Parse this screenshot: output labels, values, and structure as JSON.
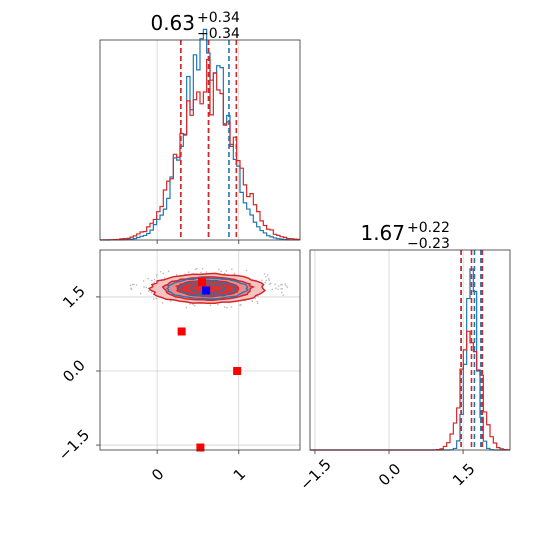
{
  "chart_data": {
    "type": "corner",
    "colors": {
      "series_a": "#1f77b4",
      "series_b": "#d62728",
      "marker_a": "#0000ff",
      "marker_b": "#ff0000",
      "grid": "#d3d3d3"
    },
    "panels": [
      {
        "id": "param1_marginal",
        "type": "histogram",
        "title": {
          "median": "0.63",
          "plus": "+0.34",
          "minus": "−0.34"
        },
        "xlim": [
          -0.7,
          1.75
        ],
        "xticks": [
          0,
          1
        ],
        "quantiles": {
          "series_a": [
            0.29,
            0.63,
            0.88
          ],
          "series_b": [
            0.29,
            0.63,
            0.97
          ]
        },
        "series": [
          {
            "key": "series_a",
            "center": 0.6,
            "sigma": 0.28,
            "peak": 1.0
          },
          {
            "key": "series_b",
            "center": 0.62,
            "sigma": 0.33,
            "peak": 0.82
          }
        ]
      },
      {
        "id": "param2_marginal",
        "type": "histogram",
        "title": {
          "median": "1.67",
          "plus": "+0.22",
          "minus": "−0.23"
        },
        "xlim": [
          -1.6,
          2.45
        ],
        "xticks": [
          -1.5,
          0.0,
          1.5
        ],
        "xtick_labels": [
          "−1.5",
          "0.0",
          "1.5"
        ],
        "quantiles": {
          "series_a": [
            1.46,
            1.73,
            1.86
          ],
          "series_b": [
            1.46,
            1.67,
            1.89
          ]
        },
        "series": [
          {
            "key": "series_a",
            "center": 1.67,
            "sigma": 0.11,
            "peak": 1.0
          },
          {
            "key": "series_b",
            "center": 1.67,
            "sigma": 0.2,
            "peak": 0.62
          }
        ]
      },
      {
        "id": "joint",
        "type": "2d_density",
        "xlim": [
          -0.7,
          1.75
        ],
        "ylim": [
          -1.6,
          2.45
        ],
        "xticks": [
          0,
          1
        ],
        "yticks": [
          -1.5,
          0.0,
          1.5
        ],
        "ytick_labels": [
          "−1.5",
          "0.0",
          "1.5"
        ],
        "center": {
          "x": 0.62,
          "y": 1.67
        },
        "spread": {
          "x": 0.7,
          "y": 0.3
        },
        "markers": [
          {
            "x": 0.6,
            "y": 1.63,
            "color": "marker_a"
          },
          {
            "x": 0.55,
            "y": 1.8,
            "color": "marker_b"
          },
          {
            "x": 0.3,
            "y": 0.8,
            "color": "marker_b"
          },
          {
            "x": 0.98,
            "y": 0.0,
            "color": "marker_b"
          },
          {
            "x": 0.53,
            "y": -1.55,
            "color": "marker_b"
          }
        ]
      }
    ]
  }
}
